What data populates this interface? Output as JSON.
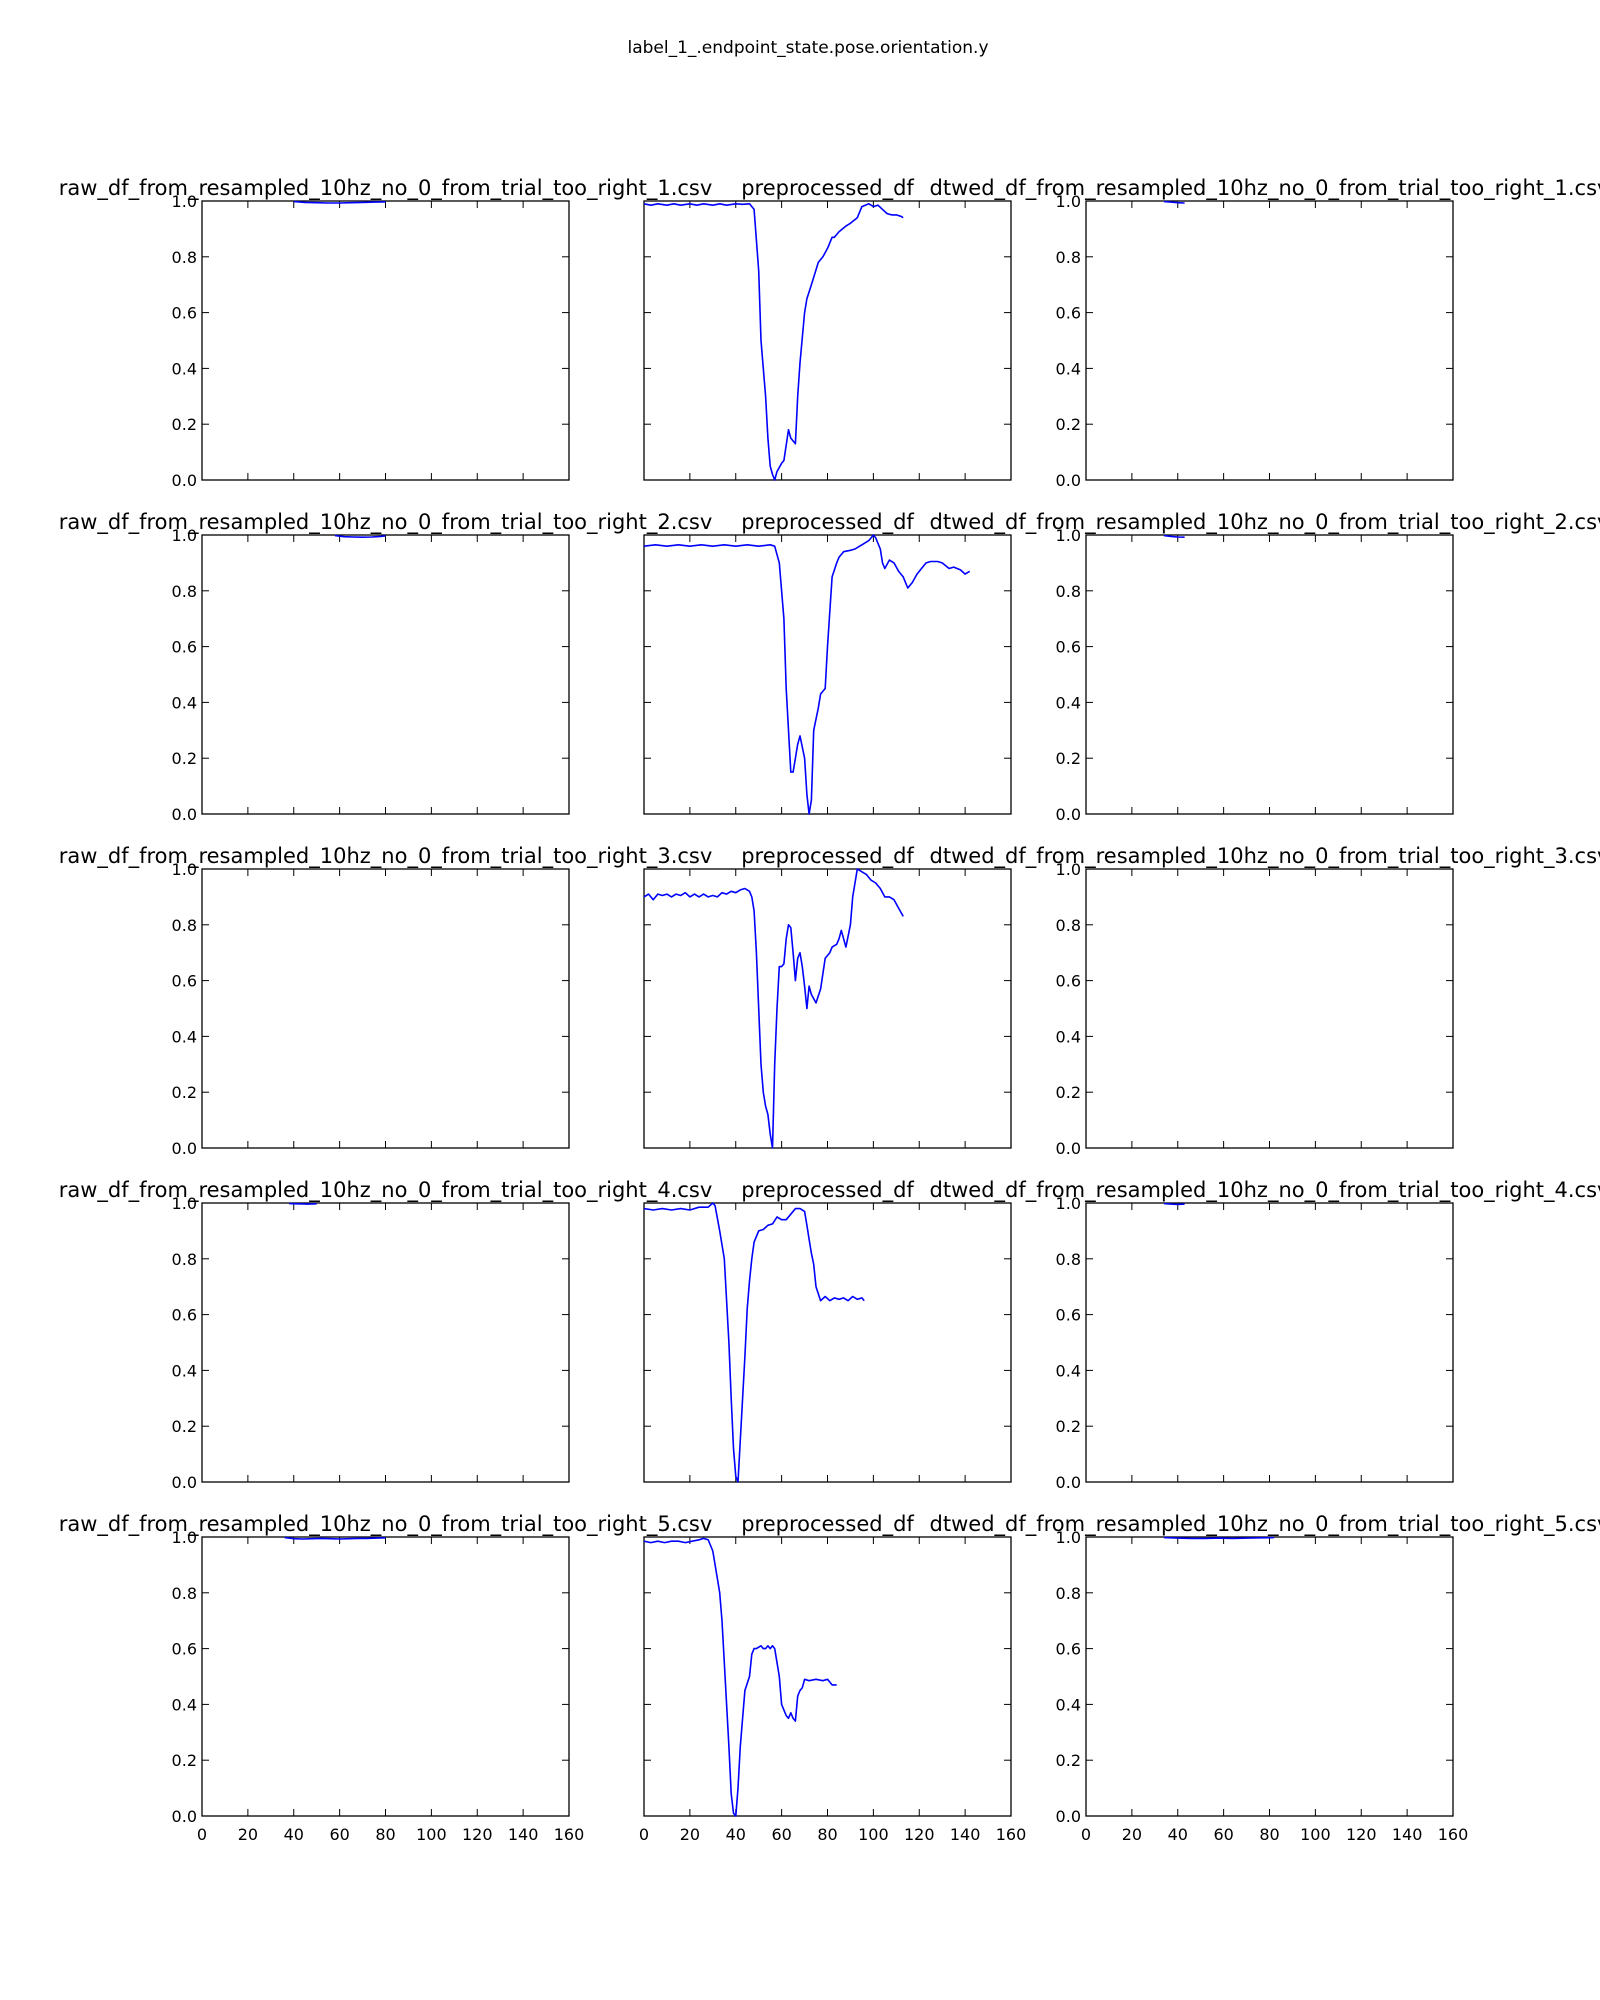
{
  "chart_data": {
    "type": "line",
    "title": "label_1_.endpoint_state.pose.orientation.y",
    "grid": false,
    "line_color": "#0000ff",
    "xlim": [
      0,
      160
    ],
    "ylim": [
      0.0,
      1.0
    ],
    "x_ticks": [
      0,
      20,
      40,
      60,
      80,
      100,
      120,
      140,
      160
    ],
    "y_ticks": [
      "0.0",
      "0.2",
      "0.4",
      "0.6",
      "0.8",
      "1.0"
    ],
    "panels": [
      {
        "title": "raw_df_from_resampled_10hz_no_0_from_trial_too_right_1.csv",
        "x": [
          40,
          45,
          50,
          55,
          60,
          65,
          70,
          75,
          80
        ],
        "y": [
          0.998,
          0.995,
          0.994,
          0.993,
          0.993,
          0.994,
          0.995,
          0.996,
          0.997
        ]
      },
      {
        "title": "preprocessed_df",
        "x": [
          0,
          3,
          6,
          10,
          13,
          16,
          20,
          23,
          26,
          30,
          33,
          36,
          40,
          43,
          46,
          48,
          50,
          51,
          53,
          54,
          55,
          56,
          57,
          58,
          60,
          61,
          63,
          64,
          66,
          67,
          68,
          70,
          71,
          73,
          76,
          78,
          80,
          82,
          83,
          85,
          88,
          90,
          93,
          95,
          98,
          100,
          102,
          104,
          106,
          108,
          110,
          112,
          113
        ],
        "y": [
          0.99,
          0.985,
          0.99,
          0.985,
          0.99,
          0.985,
          0.99,
          0.985,
          0.99,
          0.985,
          0.99,
          0.985,
          0.99,
          0.988,
          0.99,
          0.97,
          0.75,
          0.5,
          0.3,
          0.15,
          0.05,
          0.02,
          0.0,
          0.03,
          0.06,
          0.07,
          0.18,
          0.15,
          0.13,
          0.3,
          0.42,
          0.6,
          0.65,
          0.7,
          0.78,
          0.8,
          0.83,
          0.87,
          0.87,
          0.89,
          0.91,
          0.92,
          0.94,
          0.98,
          0.99,
          0.98,
          0.985,
          0.97,
          0.955,
          0.95,
          0.95,
          0.945,
          0.94
        ]
      },
      {
        "title": "dtwed_df_from_resampled_10hz_no_0_from_trial_too_right_1.csv",
        "x": [
          34,
          37,
          40,
          43
        ],
        "y": [
          0.998,
          0.996,
          0.994,
          0.993
        ]
      },
      {
        "title": "raw_df_from_resampled_10hz_no_0_from_trial_too_right_2.csv",
        "x": [
          58,
          62,
          66,
          70,
          74,
          78,
          80
        ],
        "y": [
          0.998,
          0.994,
          0.993,
          0.992,
          0.993,
          0.995,
          0.997
        ]
      },
      {
        "title": "preprocessed_df",
        "x": [
          0,
          5,
          10,
          15,
          20,
          25,
          30,
          35,
          40,
          45,
          50,
          55,
          57,
          59,
          61,
          62,
          64,
          65,
          66,
          67,
          68,
          70,
          71,
          72,
          73,
          74,
          76,
          77,
          79,
          80,
          82,
          84,
          85,
          87,
          90,
          92,
          94,
          96,
          98,
          100,
          101,
          103,
          104,
          105,
          107,
          109,
          111,
          113,
          115,
          117,
          119,
          121,
          123,
          125,
          128,
          130,
          133,
          135,
          138,
          140,
          142
        ],
        "y": [
          0.96,
          0.965,
          0.96,
          0.965,
          0.96,
          0.965,
          0.96,
          0.965,
          0.96,
          0.965,
          0.96,
          0.965,
          0.96,
          0.9,
          0.7,
          0.45,
          0.15,
          0.15,
          0.2,
          0.25,
          0.28,
          0.2,
          0.07,
          0.0,
          0.05,
          0.3,
          0.38,
          0.43,
          0.45,
          0.6,
          0.85,
          0.9,
          0.92,
          0.94,
          0.945,
          0.95,
          0.96,
          0.97,
          0.98,
          1.0,
          0.99,
          0.95,
          0.9,
          0.88,
          0.91,
          0.9,
          0.87,
          0.85,
          0.81,
          0.83,
          0.86,
          0.88,
          0.9,
          0.905,
          0.905,
          0.9,
          0.88,
          0.885,
          0.875,
          0.86,
          0.87
        ]
      },
      {
        "title": "dtwed_df_from_resampled_10hz_no_0_from_trial_too_right_2.csv",
        "x": [
          34,
          37,
          40,
          43
        ],
        "y": [
          0.998,
          0.995,
          0.993,
          0.992
        ]
      },
      {
        "title": "raw_df_from_resampled_10hz_no_0_from_trial_too_right_3.csv",
        "x": [],
        "y": []
      },
      {
        "title": "preprocessed_df",
        "x": [
          0,
          2,
          4,
          6,
          8,
          10,
          12,
          14,
          16,
          18,
          20,
          22,
          24,
          26,
          28,
          30,
          32,
          34,
          36,
          38,
          40,
          42,
          44,
          46,
          47,
          48,
          49,
          50,
          51,
          52,
          53,
          54,
          55,
          56,
          57,
          58,
          59,
          60,
          61,
          62,
          63,
          64,
          65,
          66,
          67,
          68,
          69,
          70,
          71,
          72,
          73,
          75,
          77,
          79,
          81,
          82,
          84,
          85,
          86,
          88,
          90,
          91,
          93,
          95,
          97,
          99,
          101,
          103,
          105,
          107,
          109,
          111,
          113
        ],
        "y": [
          0.9,
          0.91,
          0.89,
          0.91,
          0.905,
          0.91,
          0.9,
          0.91,
          0.905,
          0.915,
          0.9,
          0.91,
          0.9,
          0.91,
          0.9,
          0.905,
          0.9,
          0.915,
          0.91,
          0.92,
          0.915,
          0.925,
          0.93,
          0.92,
          0.9,
          0.85,
          0.7,
          0.5,
          0.3,
          0.2,
          0.15,
          0.12,
          0.05,
          0.0,
          0.3,
          0.5,
          0.65,
          0.65,
          0.66,
          0.75,
          0.8,
          0.79,
          0.7,
          0.6,
          0.68,
          0.7,
          0.65,
          0.58,
          0.5,
          0.58,
          0.55,
          0.52,
          0.57,
          0.68,
          0.7,
          0.72,
          0.73,
          0.75,
          0.78,
          0.72,
          0.8,
          0.9,
          1.0,
          0.99,
          0.98,
          0.96,
          0.95,
          0.93,
          0.9,
          0.9,
          0.89,
          0.86,
          0.83
        ]
      },
      {
        "title": "dtwed_df_from_resampled_10hz_no_0_from_trial_too_right_3.csv",
        "x": [],
        "y": []
      },
      {
        "title": "raw_df_from_resampled_10hz_no_0_from_trial_too_right_4.csv",
        "x": [
          38,
          42,
          46,
          50
        ],
        "y": [
          0.998,
          0.997,
          0.996,
          0.997
        ]
      },
      {
        "title": "preprocessed_df",
        "x": [
          0,
          4,
          8,
          12,
          16,
          20,
          24,
          28,
          30,
          31,
          33,
          35,
          37,
          38,
          39,
          40,
          41,
          42,
          43,
          44,
          45,
          46,
          47,
          48,
          50,
          52,
          54,
          56,
          58,
          60,
          62,
          64,
          66,
          68,
          70,
          71,
          72,
          73,
          74,
          75,
          77,
          79,
          81,
          83,
          85,
          87,
          89,
          91,
          93,
          95,
          96
        ],
        "y": [
          0.98,
          0.975,
          0.98,
          0.975,
          0.98,
          0.975,
          0.985,
          0.985,
          1.0,
          0.99,
          0.9,
          0.8,
          0.5,
          0.3,
          0.12,
          0.02,
          0.0,
          0.15,
          0.3,
          0.45,
          0.62,
          0.72,
          0.8,
          0.86,
          0.9,
          0.905,
          0.92,
          0.925,
          0.95,
          0.94,
          0.94,
          0.96,
          0.98,
          0.98,
          0.97,
          0.92,
          0.87,
          0.82,
          0.78,
          0.7,
          0.65,
          0.665,
          0.65,
          0.66,
          0.655,
          0.66,
          0.65,
          0.665,
          0.655,
          0.66,
          0.65
        ]
      },
      {
        "title": "dtwed_df_from_resampled_10hz_no_0_from_trial_too_right_4.csv",
        "x": [
          34,
          37,
          40,
          43
        ],
        "y": [
          0.998,
          0.996,
          0.995,
          0.996
        ]
      },
      {
        "title": "raw_df_from_resampled_10hz_no_0_from_trial_too_right_5.csv",
        "x": [
          36,
          40,
          44,
          48,
          52,
          56,
          60,
          64,
          68,
          72,
          76,
          80
        ],
        "y": [
          0.998,
          0.994,
          0.993,
          0.994,
          0.995,
          0.994,
          0.993,
          0.994,
          0.995,
          0.995,
          0.996,
          0.997
        ]
      },
      {
        "title": "preprocessed_df",
        "x": [
          0,
          3,
          6,
          9,
          12,
          15,
          18,
          21,
          24,
          26,
          28,
          30,
          32,
          33,
          34,
          35,
          36,
          37,
          38,
          39,
          40,
          41,
          42,
          43,
          44,
          46,
          47,
          48,
          49,
          51,
          52,
          53,
          54,
          55,
          56,
          57,
          58,
          59,
          60,
          62,
          63,
          64,
          65,
          66,
          67,
          68,
          69,
          70,
          72,
          75,
          78,
          80,
          82,
          84
        ],
        "y": [
          0.985,
          0.98,
          0.985,
          0.98,
          0.985,
          0.985,
          0.98,
          0.985,
          0.99,
          0.995,
          0.99,
          0.95,
          0.85,
          0.8,
          0.7,
          0.55,
          0.4,
          0.25,
          0.08,
          0.01,
          0.0,
          0.1,
          0.25,
          0.35,
          0.45,
          0.5,
          0.58,
          0.6,
          0.6,
          0.61,
          0.6,
          0.6,
          0.61,
          0.6,
          0.61,
          0.6,
          0.55,
          0.5,
          0.4,
          0.36,
          0.35,
          0.37,
          0.35,
          0.34,
          0.43,
          0.45,
          0.46,
          0.49,
          0.485,
          0.49,
          0.485,
          0.49,
          0.47,
          0.47
        ]
      },
      {
        "title": "dtwed_df_from_resampled_10hz_no_0_from_trial_too_right_5.csv",
        "x": [
          34,
          40,
          46,
          52,
          58,
          64,
          70,
          76,
          82
        ],
        "y": [
          0.998,
          0.996,
          0.995,
          0.995,
          0.996,
          0.995,
          0.996,
          0.997,
          0.998
        ]
      }
    ]
  }
}
